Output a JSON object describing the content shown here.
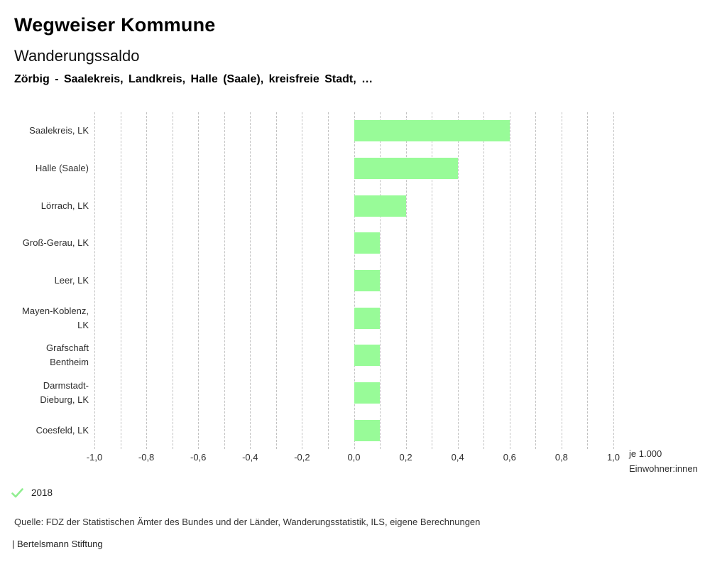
{
  "header": {
    "title": "Wegweiser Kommune",
    "subtitle": "Wanderungssaldo",
    "context": "Zörbig - Saalekreis, Landkreis, Halle (Saale), kreisfreie Stadt, …"
  },
  "chart_data": {
    "type": "bar",
    "orientation": "horizontal",
    "title": "Wanderungssaldo",
    "categories": [
      "Saalekreis, LK",
      "Halle (Saale)",
      "Lörrach, LK",
      "Groß-Gerau, LK",
      "Leer, LK",
      "Mayen-Koblenz, LK",
      "Grafschaft Bentheim",
      "Darmstadt-Dieburg, LK",
      "Coesfeld, LK"
    ],
    "category_label_lines": [
      [
        "Saalekreis, LK"
      ],
      [
        "Halle (Saale)"
      ],
      [
        "Lörrach, LK"
      ],
      [
        "Groß-Gerau, LK"
      ],
      [
        "Leer, LK"
      ],
      [
        "Mayen-Koblenz,",
        "LK"
      ],
      [
        "Grafschaft",
        "Bentheim"
      ],
      [
        "Darmstadt-",
        "Dieburg, LK"
      ],
      [
        "Coesfeld, LK"
      ]
    ],
    "series": [
      {
        "name": "2018",
        "values": [
          0.6,
          0.4,
          0.2,
          0.1,
          0.1,
          0.1,
          0.1,
          0.1,
          0.1
        ],
        "color": "#98FB98"
      }
    ],
    "xlabel_lines": [
      "je 1.000",
      "Einwohner:innen"
    ],
    "xlim": [
      -1.0,
      1.0
    ],
    "x_tick_values": [
      -1.0,
      -0.8,
      -0.6,
      -0.4,
      -0.2,
      0.0,
      0.2,
      0.4,
      0.6,
      0.8,
      1.0
    ],
    "x_tick_labels": [
      "-1,0",
      "-0,8",
      "-0,6",
      "-0,4",
      "-0,2",
      "0,0",
      "0,2",
      "0,4",
      "0,6",
      "0,8",
      "1,0"
    ],
    "minor_grid_step": 0.1,
    "grid": "vertical dashed",
    "legend_position": "bottom-left"
  },
  "legend": {
    "items": [
      {
        "label": "2018",
        "selected": true
      }
    ],
    "check_color": "#90EE90"
  },
  "footer": {
    "source": "Quelle: FDZ der Statistischen Ämter des Bundes und der Länder, Wanderungsstatistik, ILS, eigene Berechnungen",
    "branding": "| Bertelsmann Stiftung"
  },
  "colors": {
    "bar": "#98FB98",
    "grid": "#c2c2c2",
    "background": "#ffffff",
    "text": "#2e2e2e"
  }
}
